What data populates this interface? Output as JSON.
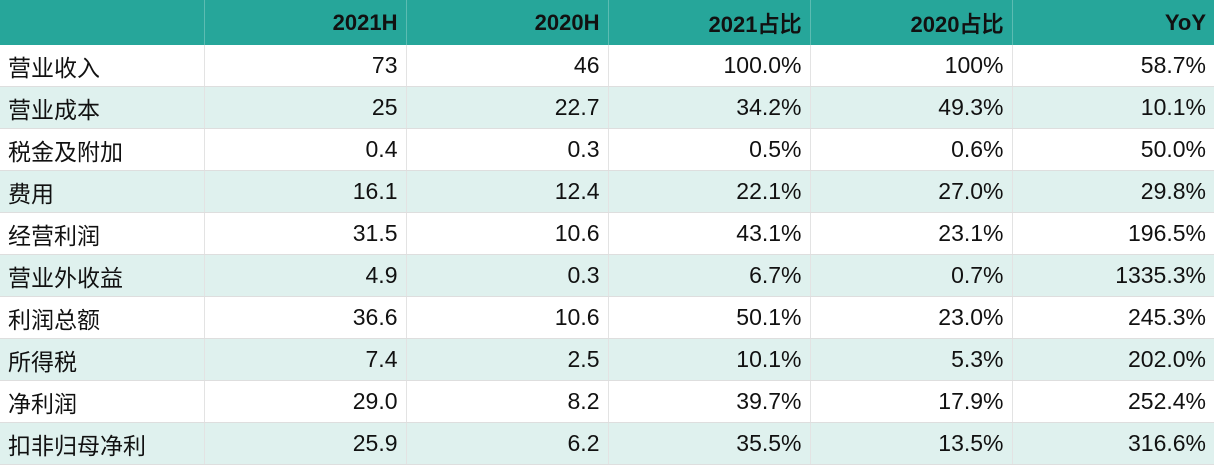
{
  "table": {
    "headers": [
      "",
      "2021H",
      "2020H",
      "2021占比",
      "2020占比",
      "YoY"
    ],
    "rows": [
      [
        "营业收入",
        "73",
        "46",
        "100.0%",
        "100%",
        "58.7%"
      ],
      [
        "营业成本",
        "25",
        "22.7",
        "34.2%",
        "49.3%",
        "10.1%"
      ],
      [
        "税金及附加",
        "0.4",
        "0.3",
        "0.5%",
        "0.6%",
        "50.0%"
      ],
      [
        "费用",
        "16.1",
        "12.4",
        "22.1%",
        "27.0%",
        "29.8%"
      ],
      [
        "经营利润",
        "31.5",
        "10.6",
        "43.1%",
        "23.1%",
        "196.5%"
      ],
      [
        "营业外收益",
        "4.9",
        "0.3",
        "6.7%",
        "0.7%",
        "1335.3%"
      ],
      [
        "利润总额",
        "36.6",
        "10.6",
        "50.1%",
        "23.0%",
        "245.3%"
      ],
      [
        "所得税",
        "7.4",
        "2.5",
        "10.1%",
        "5.3%",
        "202.0%"
      ],
      [
        "净利润",
        "29.0",
        "8.2",
        "39.7%",
        "17.9%",
        "252.4%"
      ],
      [
        "扣非归母净利",
        "25.9",
        "6.2",
        "35.5%",
        "13.5%",
        "316.6%"
      ]
    ]
  },
  "colors": {
    "header_bg": "#26a69a",
    "alt_row_bg": "#dff1ee",
    "row_bg": "#ffffff"
  }
}
